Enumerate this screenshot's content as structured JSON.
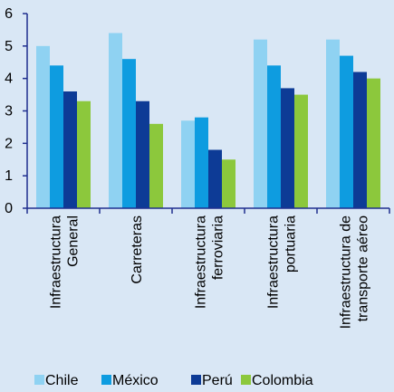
{
  "chart_data": {
    "type": "bar",
    "categories": [
      [
        "Infraestructura",
        "General"
      ],
      [
        "Carreteras"
      ],
      [
        "Infraestructura",
        "ferroviaria"
      ],
      [
        "Infraestructura",
        "portuaria"
      ],
      [
        "Infraestructura de",
        "transporte aéreo"
      ]
    ],
    "series": [
      {
        "name": "Chile",
        "color": "#8fd2f2",
        "values": [
          5.0,
          5.4,
          2.7,
          5.2,
          5.2
        ]
      },
      {
        "name": "México",
        "color": "#0e9ce0",
        "values": [
          4.4,
          4.6,
          2.8,
          4.4,
          4.7
        ]
      },
      {
        "name": "Perú",
        "color": "#0d3b96",
        "values": [
          3.6,
          3.3,
          1.8,
          3.7,
          4.2
        ]
      },
      {
        "name": "Colombia",
        "color": "#8cc83c",
        "values": [
          3.3,
          2.6,
          1.5,
          3.5,
          4.0
        ]
      }
    ],
    "ylim": [
      0,
      6
    ],
    "yticks": [
      0,
      1,
      2,
      3,
      4,
      5,
      6
    ],
    "grid": false,
    "legend": "bottom",
    "title": "",
    "xlabel": "",
    "ylabel": ""
  },
  "colors": {
    "background": "#d9e7f5",
    "axis": "#1f2f8f"
  }
}
